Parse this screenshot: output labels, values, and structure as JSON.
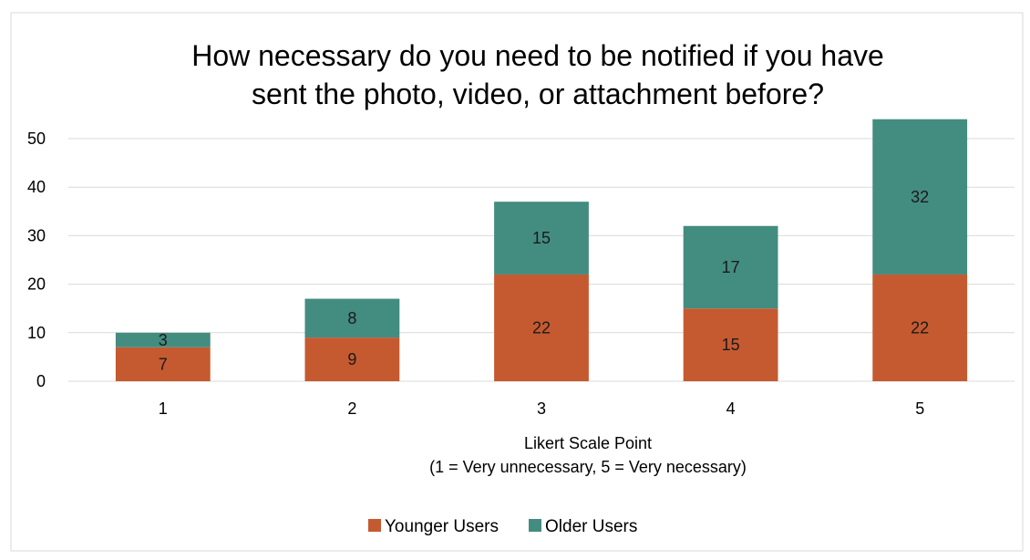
{
  "chart_data": {
    "type": "bar",
    "stacked": true,
    "title_lines": [
      "How necessary do you need to be notified if you have",
      "sent the photo, video, or attachment before?"
    ],
    "xlabel_lines": [
      "Likert Scale Point",
      "(1 = Very unnecessary, 5 = Very necessary)"
    ],
    "ylabel": "",
    "categories": [
      "1",
      "2",
      "3",
      "4",
      "5"
    ],
    "y_ticks": [
      "0",
      "10",
      "20",
      "30",
      "40",
      "50"
    ],
    "ylim": [
      0,
      50
    ],
    "grid": true,
    "legend_position": "bottom",
    "series": [
      {
        "name": "Younger Users",
        "values": [
          7,
          9,
          22,
          15,
          22
        ],
        "color": "#C55A30"
      },
      {
        "name": "Older Users",
        "values": [
          3,
          8,
          15,
          17,
          32
        ],
        "color": "#438C80"
      }
    ]
  }
}
